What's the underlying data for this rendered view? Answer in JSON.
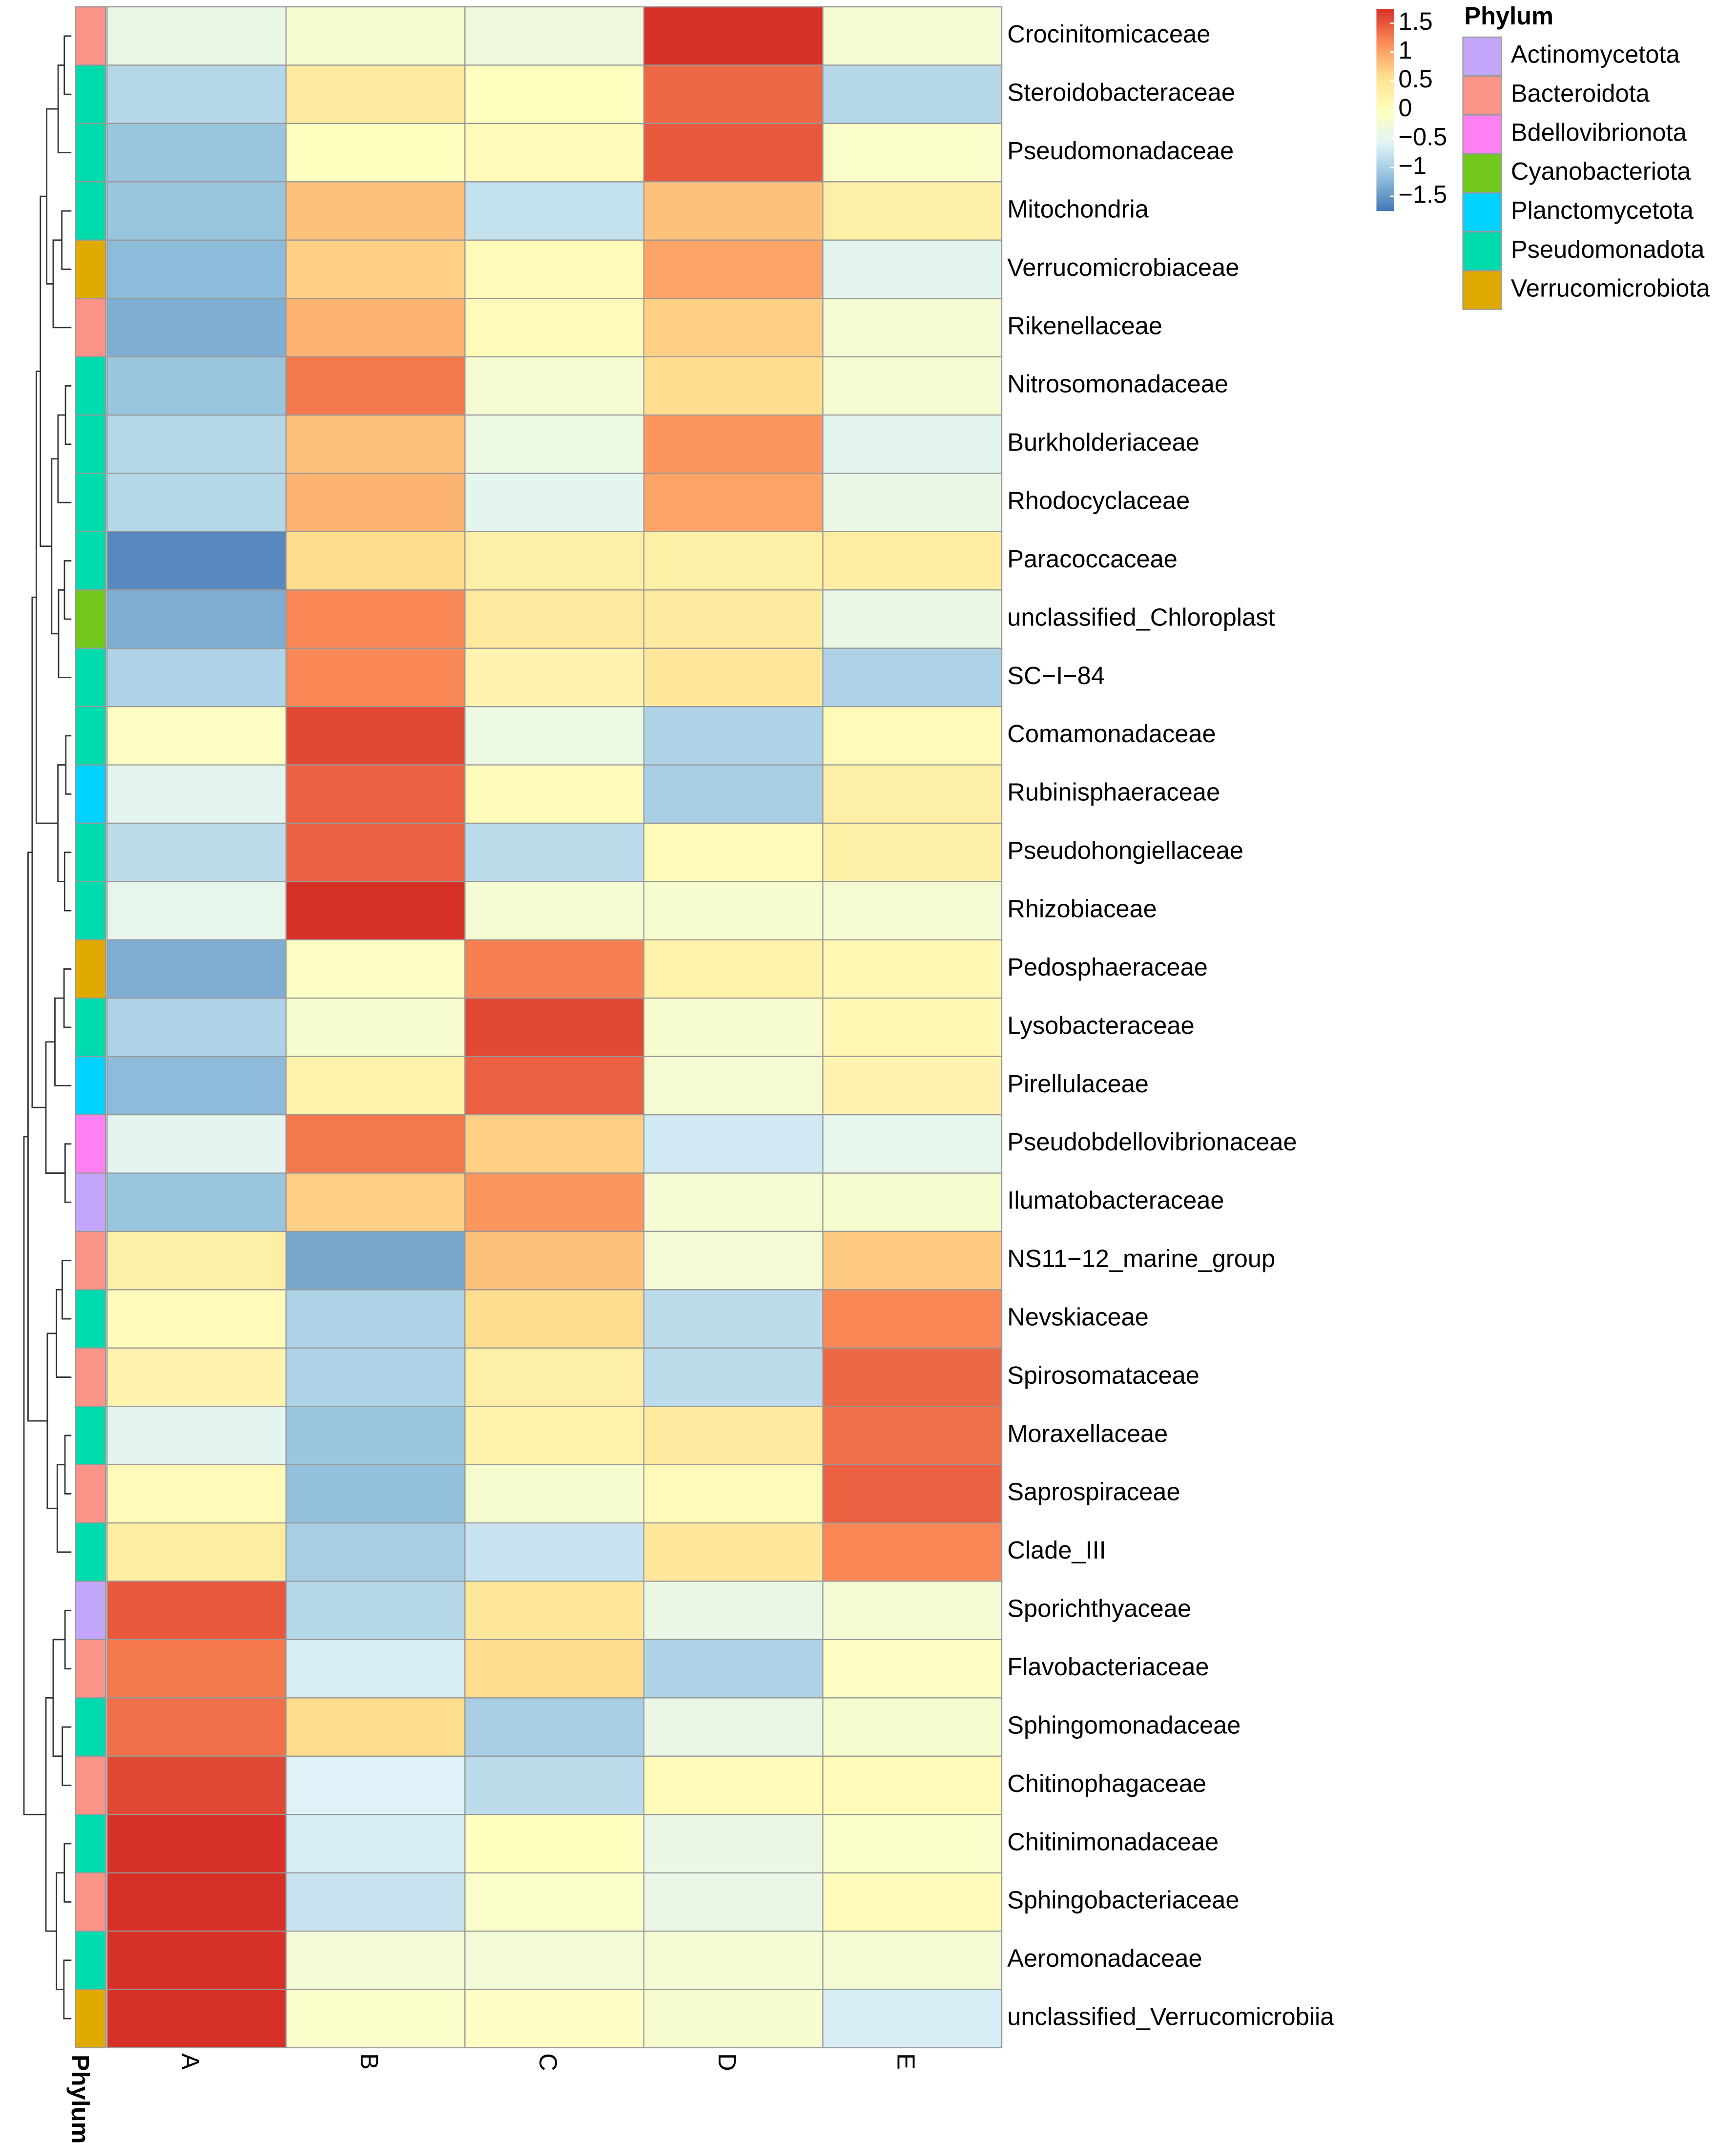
{
  "chart_data": {
    "type": "heatmap",
    "rows": [
      "Crocinitomicaceae",
      "Steroidobacteraceae",
      "Pseudomonadaceae",
      "Mitochondria",
      "Verrucomicrobiaceae",
      "Rikenellaceae",
      "Nitrosomonadaceae",
      "Burkholderiaceae",
      "Rhodocyclaceae",
      "Paracoccaceae",
      "unclassified_Chloroplast",
      "SC−I−84",
      "Comamonadaceae",
      "Rubinisphaeraceae",
      "Pseudohongiellaceae",
      "Rhizobiaceae",
      "Pedosphaeraceae",
      "Lysobacteraceae",
      "Pirellulaceae",
      "Pseudobdellovibrionaceae",
      "Ilumatobacteraceae",
      "NS11−12_marine_group",
      "Nevskiaceae",
      "Spirosomataceae",
      "Moraxellaceae",
      "Saprospiraceae",
      "Clade_III",
      "Sporichthyaceae",
      "Flavobacteriaceae",
      "Sphingomonadaceae",
      "Chitinophagaceae",
      "Chitinimonadaceae",
      "Sphingobacteriaceae",
      "Aeromonadaceae",
      "unclassified_Verrucomicrobiia"
    ],
    "columns": [
      "A",
      "B",
      "C",
      "D",
      "E"
    ],
    "values": [
      [
        -0.4,
        -0.15,
        -0.3,
        1.8,
        -0.2
      ],
      [
        -0.9,
        0.4,
        0.0,
        1.4,
        -0.9
      ],
      [
        -1.1,
        0.0,
        0.1,
        1.5,
        -0.1
      ],
      [
        -1.1,
        0.8,
        -0.8,
        0.8,
        0.3
      ],
      [
        -1.2,
        0.7,
        0.1,
        1.0,
        -0.5
      ],
      [
        -1.3,
        0.9,
        0.1,
        0.7,
        -0.2
      ],
      [
        -1.1,
        1.3,
        -0.2,
        0.6,
        -0.2
      ],
      [
        -0.9,
        0.8,
        -0.35,
        1.1,
        -0.5
      ],
      [
        -0.9,
        0.9,
        -0.5,
        1.0,
        -0.4
      ],
      [
        -1.6,
        0.6,
        0.3,
        0.3,
        0.35
      ],
      [
        -1.3,
        1.2,
        0.4,
        0.4,
        -0.4
      ],
      [
        -0.95,
        1.2,
        0.2,
        0.45,
        -0.95
      ],
      [
        -0.05,
        1.6,
        -0.35,
        -0.95,
        0.1
      ],
      [
        -0.5,
        1.45,
        0.05,
        -1.0,
        0.3
      ],
      [
        -0.85,
        1.45,
        -0.85,
        0.1,
        0.3
      ],
      [
        -0.45,
        1.8,
        -0.2,
        -0.15,
        -0.2
      ],
      [
        -1.3,
        -0.05,
        1.25,
        0.25,
        0.15
      ],
      [
        -0.95,
        -0.15,
        1.6,
        -0.15,
        0.15
      ],
      [
        -1.2,
        0.25,
        1.45,
        -0.2,
        0.2
      ],
      [
        -0.5,
        1.3,
        0.7,
        -0.7,
        -0.45
      ],
      [
        -1.1,
        0.7,
        1.1,
        -0.2,
        -0.15
      ],
      [
        0.3,
        -1.35,
        0.8,
        -0.25,
        0.75
      ],
      [
        0.05,
        -0.95,
        0.6,
        -0.85,
        1.2
      ],
      [
        0.2,
        -0.95,
        0.3,
        -0.85,
        1.4
      ],
      [
        -0.5,
        -1.1,
        0.25,
        0.4,
        1.35
      ],
      [
        0.1,
        -1.15,
        -0.15,
        0.1,
        1.45
      ],
      [
        0.35,
        -1.0,
        -0.75,
        0.45,
        1.2
      ],
      [
        1.5,
        -0.9,
        0.45,
        -0.4,
        -0.2
      ],
      [
        1.3,
        -0.65,
        0.6,
        -0.95,
        -0.05
      ],
      [
        1.35,
        0.6,
        -1.0,
        -0.4,
        -0.15
      ],
      [
        1.6,
        -0.6,
        -0.85,
        0.05,
        0.1
      ],
      [
        1.8,
        -0.65,
        0.0,
        -0.4,
        -0.1
      ],
      [
        1.8,
        -0.75,
        -0.1,
        -0.4,
        0.05
      ],
      [
        1.8,
        -0.25,
        -0.25,
        -0.2,
        -0.2
      ],
      [
        1.75,
        -0.1,
        -0.05,
        -0.15,
        -0.65
      ]
    ],
    "colors": [
      "#4575B4",
      "#91BFDB",
      "#E0F3F8",
      "#FFFFBF",
      "#FEE090",
      "#FC8D59",
      "#D73027"
    ],
    "zlim": [
      -1.75,
      1.75
    ],
    "zticks": [
      {
        "value": 1.5,
        "label": "1.5"
      },
      1,
      {
        "value": 0.5,
        "label": "0.5"
      },
      0,
      {
        "value": -0.5,
        "label": "−0.5"
      },
      {
        "value": -1,
        "label": "−1"
      },
      {
        "value": -1.5,
        "label": "−1.5"
      }
    ],
    "annotation": {
      "title": "Phylum",
      "levels": [
        {
          "name": "Actinomycetota",
          "color": "#C3A5FA"
        },
        {
          "name": "Bacteroidota",
          "color": "#FB9388"
        },
        {
          "name": "Bdellovibrionota",
          "color": "#FF80F0"
        },
        {
          "name": "Cyanobacteriota",
          "color": "#72C81C"
        },
        {
          "name": "Planctomycetota",
          "color": "#00D1FF"
        },
        {
          "name": "Pseudomonadota",
          "color": "#00DBAE"
        },
        {
          "name": "Verrucomicrobiota",
          "color": "#E0AA00"
        }
      ],
      "values": [
        "Bacteroidota",
        "Pseudomonadota",
        "Pseudomonadota",
        "Pseudomonadota",
        "Verrucomicrobiota",
        "Bacteroidota",
        "Pseudomonadota",
        "Pseudomonadota",
        "Pseudomonadota",
        "Pseudomonadota",
        "Cyanobacteriota",
        "Pseudomonadota",
        "Pseudomonadota",
        "Planctomycetota",
        "Pseudomonadota",
        "Pseudomonadota",
        "Verrucomicrobiota",
        "Pseudomonadota",
        "Planctomycetota",
        "Bdellovibrionota",
        "Actinomycetota",
        "Bacteroidota",
        "Pseudomonadota",
        "Bacteroidota",
        "Pseudomonadota",
        "Bacteroidota",
        "Pseudomonadota",
        "Actinomycetota",
        "Bacteroidota",
        "Pseudomonadota",
        "Bacteroidota",
        "Pseudomonadota",
        "Bacteroidota",
        "Pseudomonadota",
        "Verrucomicrobiota"
      ]
    }
  }
}
